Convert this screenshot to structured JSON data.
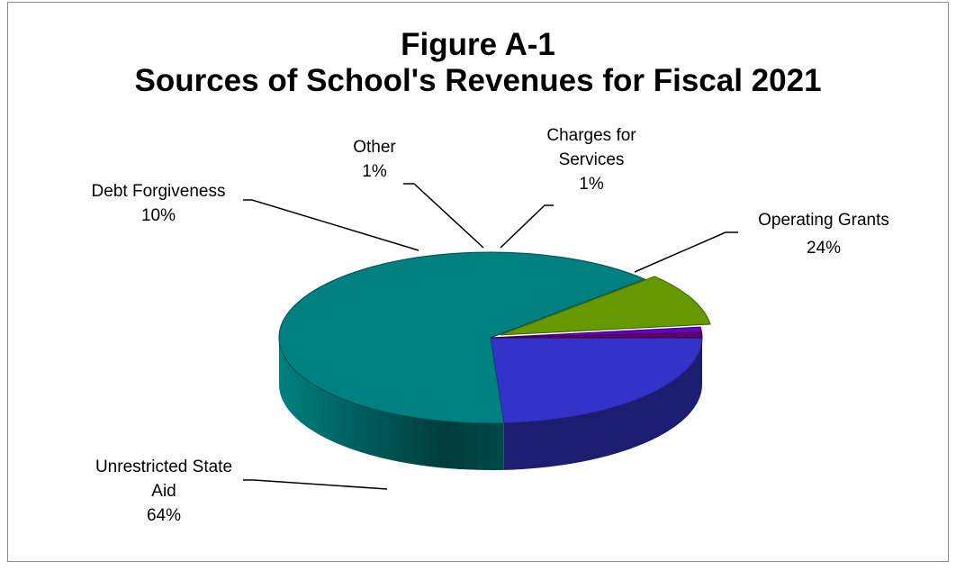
{
  "chart_data": {
    "type": "pie",
    "title": "Figure A-1",
    "subtitle": "Sources of School's Revenues for Fiscal 2021",
    "slices": [
      {
        "name": "Operating Grants",
        "value": 24,
        "label": "24%",
        "color": "#3333CC"
      },
      {
        "name": "Unrestricted State Aid",
        "value": 64,
        "label": "64%",
        "color": "#008080"
      },
      {
        "name": "Debt Forgiveness",
        "value": 10,
        "label": "10%",
        "color": "#669900"
      },
      {
        "name": "Other",
        "value": 1,
        "label": "1%",
        "color": "#6600CC"
      },
      {
        "name": "Charges for Services",
        "value": 1,
        "label": "1%",
        "color": "#660066"
      }
    ],
    "legend": "none",
    "style": "3d-exploded"
  }
}
